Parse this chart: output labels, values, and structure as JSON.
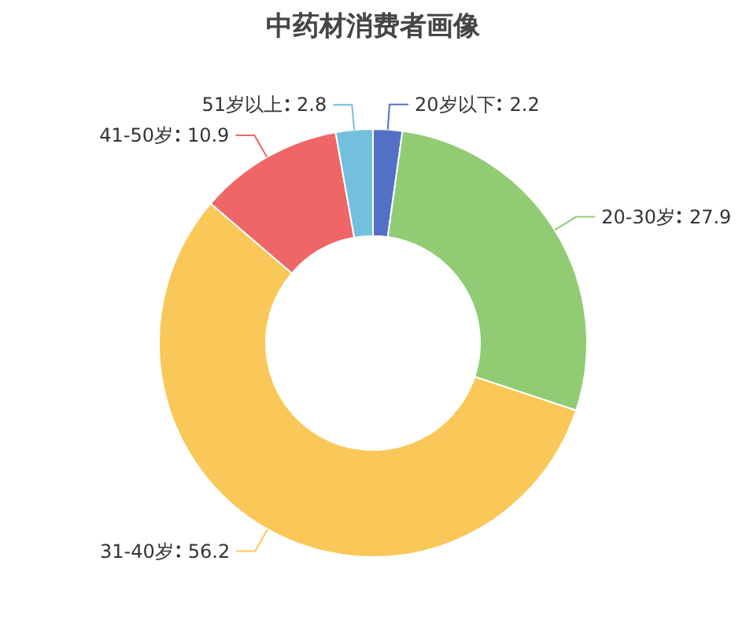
{
  "chart_data": {
    "type": "donut",
    "title": "中药材消费者画像",
    "categories": [
      "20岁以下",
      "20-30岁",
      "31-40岁",
      "41-50岁",
      "51岁以上"
    ],
    "values": [
      2.2,
      27.9,
      56.2,
      10.9,
      2.8
    ],
    "colors": [
      "#5470c6",
      "#91cc75",
      "#fac858",
      "#ee6666",
      "#73c0de"
    ],
    "data_labels": true
  }
}
